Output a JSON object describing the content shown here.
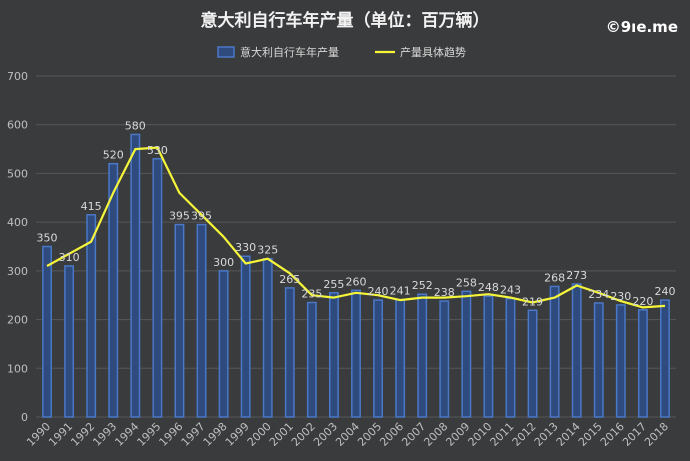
{
  "watermark": "©9ıe.me",
  "colors": {
    "background": "#3a3b3d",
    "bar_fill": "#2f4a7d",
    "bar_stroke": "#4a78c7",
    "line": "#f5f53a",
    "grid": "#555759",
    "text": "#d9d9d9"
  },
  "chart_data": {
    "type": "bar",
    "title": "意大利自行车年产量（单位：百万辆）",
    "xlabel": "",
    "ylabel": "",
    "ylim": [
      0,
      700
    ],
    "yticks": [
      0,
      100,
      200,
      300,
      400,
      500,
      600,
      700
    ],
    "grid": true,
    "legend_position": "top",
    "categories": [
      "1990",
      "1991",
      "1992",
      "1993",
      "1994",
      "1995",
      "1996",
      "1997",
      "1998",
      "1999",
      "2000",
      "2001",
      "2002",
      "2003",
      "2004",
      "2005",
      "2006",
      "2007",
      "2008",
      "2009",
      "2010",
      "2011",
      "2012",
      "2013",
      "2014",
      "2015",
      "2016",
      "2017",
      "2018"
    ],
    "series": [
      {
        "name": "意大利自行车年产量",
        "kind": "bar",
        "values": [
          350,
          310,
          415,
          520,
          580,
          530,
          395,
          395,
          300,
          330,
          325,
          265,
          235,
          255,
          260,
          240,
          241,
          252,
          238,
          258,
          248,
          243,
          219,
          268,
          273,
          234,
          230,
          220,
          240
        ]
      },
      {
        "name": "产量具体趋势",
        "kind": "line",
        "values": [
          310,
          335,
          360,
          460,
          550,
          553,
          460,
          415,
          370,
          315,
          325,
          295,
          250,
          245,
          255,
          250,
          240,
          245,
          245,
          248,
          252,
          245,
          235,
          245,
          270,
          255,
          238,
          225,
          228
        ]
      }
    ]
  }
}
